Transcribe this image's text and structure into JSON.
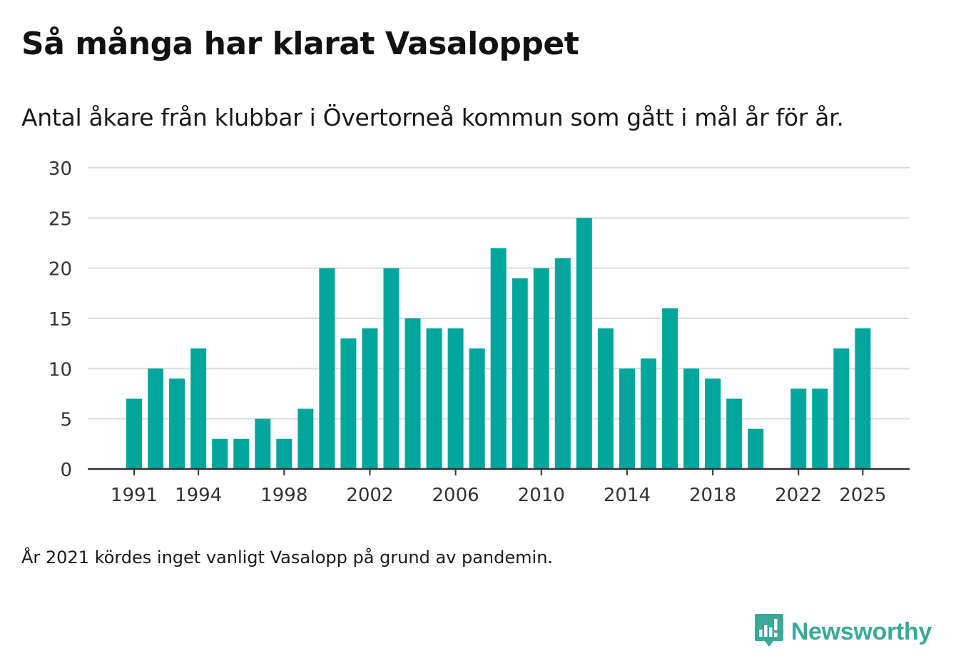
{
  "title": "Så många har klarat Vasaloppet",
  "subtitle": "Antal åkare från klubbar i Övertorneå kommun som gått i mål år för år.",
  "footnote": "År 2021 kördes inget vanligt Vasalopp på grund av pandemin.",
  "brand": {
    "name": "Newsworthy",
    "icon": "newsworthy-logo-icon",
    "color": "#3aa99a"
  },
  "colors": {
    "bar": "#00a69c",
    "grid": "#dddddd",
    "axis": "#333333",
    "text": "#333333"
  },
  "chart_data": {
    "type": "bar",
    "title": "Så många har klarat Vasaloppet",
    "subtitle": "Antal åkare från klubbar i Övertorneå kommun som gått i mål år för år.",
    "xlabel": "",
    "ylabel": "",
    "ylim": [
      0,
      30
    ],
    "yticks": [
      0,
      5,
      10,
      15,
      20,
      25,
      30
    ],
    "grid": true,
    "categories": [
      1991,
      1992,
      1993,
      1994,
      1995,
      1996,
      1997,
      1998,
      1999,
      2000,
      2001,
      2002,
      2003,
      2004,
      2005,
      2006,
      2007,
      2008,
      2009,
      2010,
      2011,
      2012,
      2013,
      2014,
      2015,
      2016,
      2017,
      2018,
      2019,
      2020,
      2021,
      2022,
      2023,
      2024,
      2025
    ],
    "values": [
      7,
      10,
      9,
      12,
      3,
      3,
      5,
      3,
      6,
      20,
      13,
      14,
      20,
      15,
      14,
      14,
      12,
      22,
      19,
      20,
      21,
      25,
      14,
      10,
      11,
      16,
      10,
      9,
      7,
      4,
      null,
      8,
      8,
      12,
      14
    ],
    "xtick_labels": [
      "1991",
      "1994",
      "1998",
      "2002",
      "2006",
      "2010",
      "2014",
      "2018",
      "2022",
      "2025"
    ]
  }
}
